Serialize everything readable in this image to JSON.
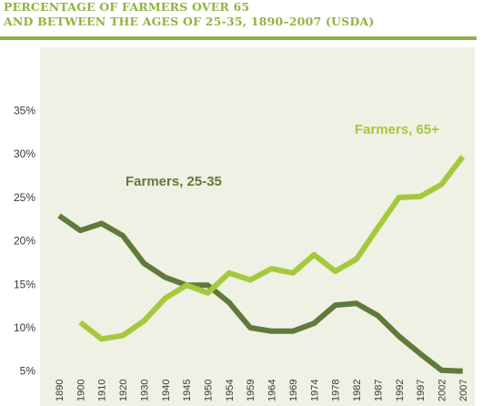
{
  "header": {
    "title_line1": "PERCENTAGE OF FARMERS OVER 65",
    "title_line2": "AND BETWEEN THE AGES OF 25-35, 1890–2007 (USDA)"
  },
  "colors": {
    "background": "#eef1e3",
    "title": "#8db43f",
    "farmers_25_35": "#5f7a3a",
    "farmers_65_plus": "#a6c83c"
  },
  "chart_data": {
    "type": "line",
    "title": "PERCENTAGE OF FARMERS OVER 65 AND BETWEEN THE AGES OF 25-35, 1890–2007 (USDA)",
    "categories": [
      "1890",
      "1900",
      "1910",
      "1920",
      "1930",
      "1940",
      "1945",
      "1950",
      "1954",
      "1959",
      "1964",
      "1969",
      "1974",
      "1978",
      "1982",
      "1987",
      "1992",
      "1997",
      "2002",
      "2007"
    ],
    "yticks": [
      "5%",
      "10%",
      "15%",
      "20%",
      "25%",
      "30%",
      "35%"
    ],
    "ylim": [
      0,
      35
    ],
    "grid": false,
    "legend": "inline labels",
    "series": [
      {
        "name": "Farmers, 25-35",
        "values": [
          22.9,
          21.2,
          22.0,
          20.6,
          17.4,
          15.8,
          14.9,
          14.9,
          12.9,
          10.0,
          9.6,
          9.6,
          10.5,
          12.6,
          12.8,
          11.4,
          9.0,
          7.0,
          5.1,
          5.0
        ]
      },
      {
        "name": "Farmers, 65+",
        "values": [
          null,
          10.6,
          8.7,
          9.1,
          10.8,
          13.4,
          14.9,
          14.0,
          16.3,
          15.5,
          16.8,
          16.3,
          18.4,
          16.5,
          17.9,
          21.5,
          25.0,
          25.1,
          26.5,
          29.7
        ]
      }
    ]
  }
}
